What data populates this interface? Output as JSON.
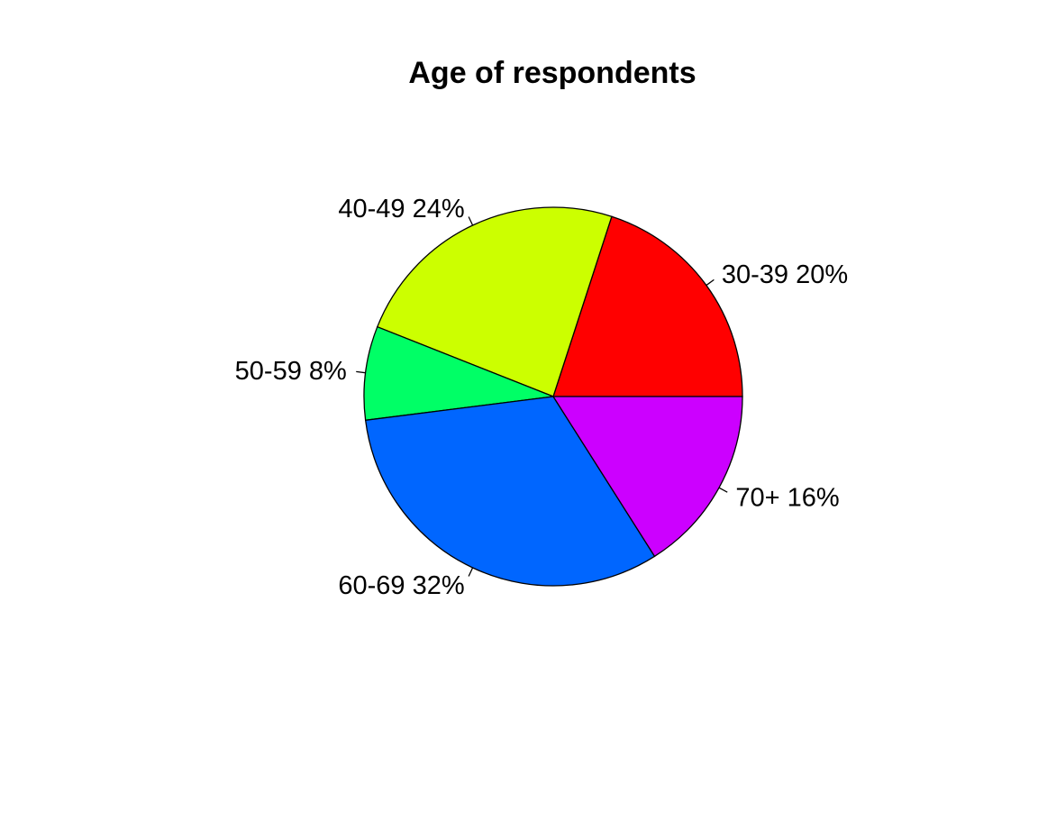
{
  "chart_data": {
    "type": "pie",
    "title": "Age of respondents",
    "direction": "counterclockwise",
    "start_angle_degrees": 0,
    "slices": [
      {
        "category": "30-39",
        "percent": 20,
        "label": "30-39 20%",
        "color": "#FF0000"
      },
      {
        "category": "40-49",
        "percent": 24,
        "label": "40-49 24%",
        "color": "#CCFF00"
      },
      {
        "category": "50-59",
        "percent": 8,
        "label": "50-59 8%",
        "color": "#00FF66"
      },
      {
        "category": "60-69",
        "percent": 32,
        "label": "60-69 32%",
        "color": "#0066FF"
      },
      {
        "category": "70+",
        "percent": 16,
        "label": "70+ 16%",
        "color": "#CC00FF"
      }
    ]
  }
}
